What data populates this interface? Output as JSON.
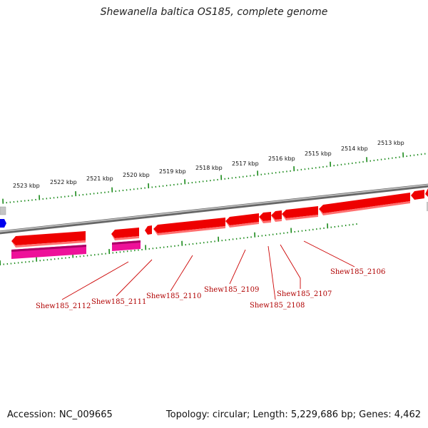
{
  "title": "Shewanella baltica OS185, complete genome",
  "accession": "Accession: NC_009665",
  "summary": "Topology: circular; Length: 5,229,686 bp; Genes: 4,462",
  "scale_labels": [
    "2523 kbp",
    "2522 kbp",
    "2521 kbp",
    "2520 kbp",
    "2519 kbp",
    "2518 kbp",
    "2517 kbp",
    "2516 kbp",
    "2515 kbp",
    "2514 kbp",
    "2513 kbp"
  ],
  "gene_labels": [
    "Shew185_2112",
    "Shew185_2111",
    "Shew185_2110",
    "Shew185_2109",
    "Shew185_2108",
    "Shew185_2107",
    "Shew185_2106"
  ],
  "colors": {
    "backbone": "#808080",
    "cds": "#ee0000",
    "cds_shadow": "#ff7777",
    "rna": "#ee1199",
    "ticks": "#1a8a1a",
    "label": "#b00000",
    "blue_feature": "#0000ee"
  }
}
